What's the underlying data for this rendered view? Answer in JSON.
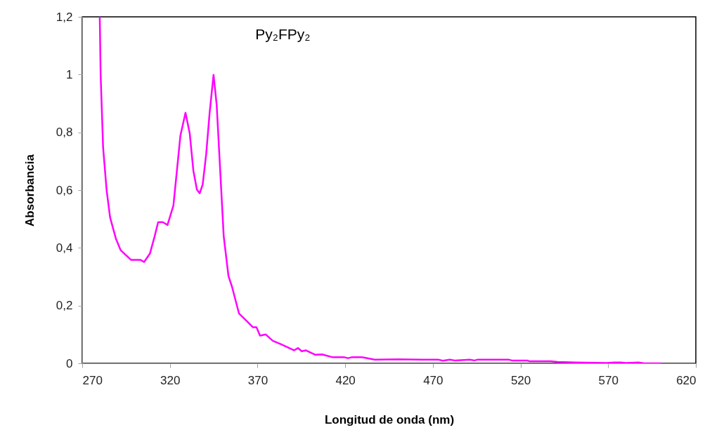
{
  "chart_data": {
    "type": "line",
    "title": "Py₂FPy₂",
    "xlabel": "Longitud de onda (nm)",
    "ylabel": "Absorbancia",
    "xlim": [
      270,
      620
    ],
    "xticks": [
      270,
      320,
      370,
      420,
      470,
      520,
      570,
      620
    ],
    "ylim": [
      0,
      1.2
    ],
    "yticks": [
      0,
      {
        "value": 0.2,
        "label": "0,2"
      },
      {
        "value": 0.4,
        "label": "0,4"
      },
      {
        "value": 0.6,
        "label": "0,6"
      },
      {
        "value": 0.8,
        "label": "0,8"
      },
      1,
      {
        "value": 1.2,
        "label": "1,2"
      }
    ],
    "grid": false,
    "marker": "none",
    "line_style": "solid",
    "x": [
      280,
      280.5,
      281.9,
      283.9,
      285.9,
      289.2,
      291.9,
      297.9,
      303.3,
      305.3,
      308.6,
      311.3,
      313.3,
      316,
      318.6,
      322,
      324,
      326,
      328.9,
      331.3,
      333.4,
      335.4,
      337,
      338.7,
      340.7,
      342.7,
      344.9,
      346.7,
      348.7,
      350.7,
      353.4,
      355.4,
      359.4,
      363.4,
      367.4,
      369.4,
      371.4,
      374.7,
      378.7,
      383.5,
      390.8,
      393.1,
      395.2,
      397.5,
      402.8,
      406.8,
      412.9,
      419.6,
      421.6,
      423.6,
      429.6,
      436.9,
      450.3,
      463.7,
      473,
      475.7,
      479.7,
      482.4,
      491,
      493.7,
      495.7,
      513.1,
      515.1,
      523.8,
      525.1,
      537.2,
      541.2,
      551.9,
      569.2,
      573.3,
      577.3,
      580,
      587.3,
      590.6,
      600
    ],
    "series": [
      {
        "color": "#ff00ff",
        "values": [
          1.2,
          1.0,
          0.748,
          0.6,
          0.505,
          0.432,
          0.392,
          0.358,
          0.358,
          0.351,
          0.38,
          0.44,
          0.489,
          0.489,
          0.479,
          0.546,
          0.667,
          0.789,
          0.868,
          0.797,
          0.667,
          0.602,
          0.589,
          0.619,
          0.724,
          0.87,
          0.999,
          0.894,
          0.667,
          0.44,
          0.303,
          0.266,
          0.173,
          0.149,
          0.125,
          0.125,
          0.096,
          0.1,
          0.078,
          0.066,
          0.045,
          0.053,
          0.042,
          0.045,
          0.03,
          0.031,
          0.021,
          0.021,
          0.018,
          0.021,
          0.021,
          0.013,
          0.014,
          0.013,
          0.013,
          0.009,
          0.013,
          0.01,
          0.013,
          0.01,
          0.013,
          0.013,
          0.01,
          0.01,
          0.007,
          0.007,
          0.005,
          0.003,
          0.001,
          0.003,
          0.003,
          0.001,
          0.003,
          0,
          0
        ]
      }
    ]
  }
}
